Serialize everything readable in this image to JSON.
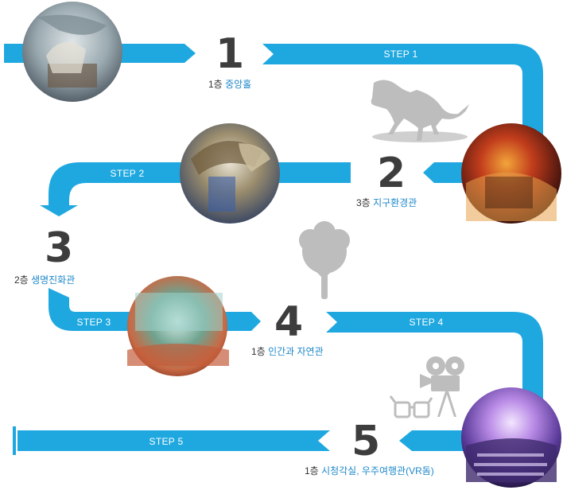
{
  "steps": [
    {
      "number": "1",
      "floor": "1층",
      "hall": "중앙홀"
    },
    {
      "number": "2",
      "floor": "3층",
      "hall": "지구환경관"
    },
    {
      "number": "3",
      "floor": "2층",
      "hall": "생명진화관"
    },
    {
      "number": "4",
      "floor": "1층",
      "hall": "인간과 자연관"
    },
    {
      "number": "5",
      "floor": "1층",
      "hall": "시청각실, 우주여행관(VR돔)"
    }
  ],
  "step_labels": [
    "STEP 1",
    "STEP 2",
    "STEP 3",
    "STEP 4",
    "STEP 5"
  ],
  "colors": {
    "path": "#1fa8e0",
    "number": "#3d3d3d",
    "highlight": "#1e88c9",
    "icon_gray": "#bdbdbd"
  },
  "icons": [
    "dinosaur-skeleton-icon",
    "tree-icon",
    "film-camera-icon",
    "3d-glasses-icon"
  ]
}
